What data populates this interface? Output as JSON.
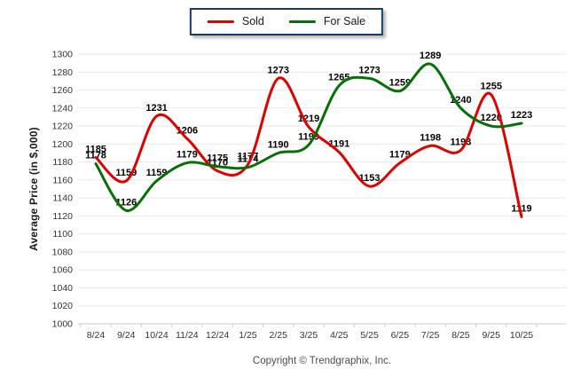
{
  "chart_data": {
    "type": "line",
    "title": "",
    "xlabel": "",
    "ylabel": "Average Price (in $,000)",
    "ylim": [
      1000,
      1300
    ],
    "ytick_step": 20,
    "grid": "horizontal",
    "legend_position": "top-center",
    "categories": [
      "8/24",
      "9/24",
      "10/24",
      "11/24",
      "12/24",
      "1/25",
      "2/25",
      "3/25",
      "4/25",
      "5/25",
      "6/25",
      "7/25",
      "8/25",
      "9/25",
      "10/25"
    ],
    "series": [
      {
        "name": "Sold",
        "color": "#e00000",
        "values": [
          1185,
          1159,
          1231,
          1206,
          1170,
          1177,
          1273,
          1219,
          1191,
          1153,
          1179,
          1198,
          1193,
          1255,
          1119
        ]
      },
      {
        "name": "For Sale",
        "color": "#067006",
        "values": [
          1178,
          1126,
          1159,
          1179,
          1175,
          1174,
          1190,
          1199,
          1265,
          1273,
          1259,
          1289,
          1240,
          1220,
          1223
        ]
      }
    ]
  },
  "footer": {
    "copyright": "Copyright © Trendgraphix, Inc."
  },
  "colors": {
    "gridline": "#e7e9eb",
    "axis": "#c9cdd1",
    "tick_text": "#333333",
    "data_label": "#000000",
    "legend_border": "#1b3a66"
  }
}
